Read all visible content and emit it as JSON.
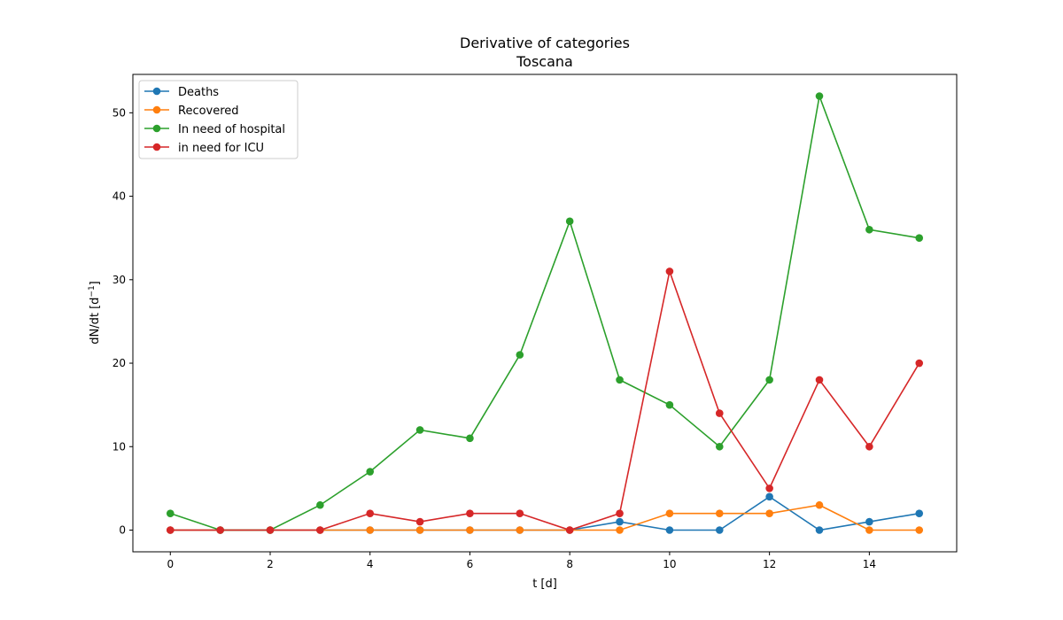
{
  "chart_data": {
    "type": "line",
    "title": "Derivative of categories",
    "subtitle": "Toscana",
    "xlabel": "t [d]",
    "ylabel_main": "dN/dt [d",
    "ylabel_sup": "−1",
    "ylabel_end": "]",
    "xlim": [
      -0.75,
      15.75
    ],
    "ylim": [
      -2.6,
      54.6
    ],
    "xticks": [
      0,
      2,
      4,
      6,
      8,
      10,
      12,
      14
    ],
    "yticks": [
      0,
      10,
      20,
      30,
      40,
      50
    ],
    "x": [
      0,
      1,
      2,
      3,
      4,
      5,
      6,
      7,
      8,
      9,
      10,
      11,
      12,
      13,
      14,
      15
    ],
    "grid": false,
    "legend_position": "top-left",
    "series": [
      {
        "name": "Deaths",
        "color": "#1f77b4",
        "values": [
          0,
          0,
          0,
          0,
          0,
          0,
          0,
          0,
          0,
          1,
          0,
          0,
          4,
          0,
          1,
          2
        ]
      },
      {
        "name": "Recovered",
        "color": "#ff7f0e",
        "values": [
          0,
          0,
          0,
          0,
          0,
          0,
          0,
          0,
          0,
          0,
          2,
          2,
          2,
          3,
          0,
          0
        ]
      },
      {
        "name": "In need of hospital",
        "color": "#2ca02c",
        "values": [
          2,
          0,
          0,
          3,
          7,
          12,
          11,
          21,
          37,
          18,
          15,
          10,
          18,
          52,
          36,
          35
        ]
      },
      {
        "name": "in need for ICU",
        "color": "#d62728",
        "values": [
          0,
          0,
          0,
          0,
          2,
          1,
          2,
          2,
          0,
          2,
          31,
          14,
          5,
          18,
          10,
          20
        ]
      }
    ]
  }
}
